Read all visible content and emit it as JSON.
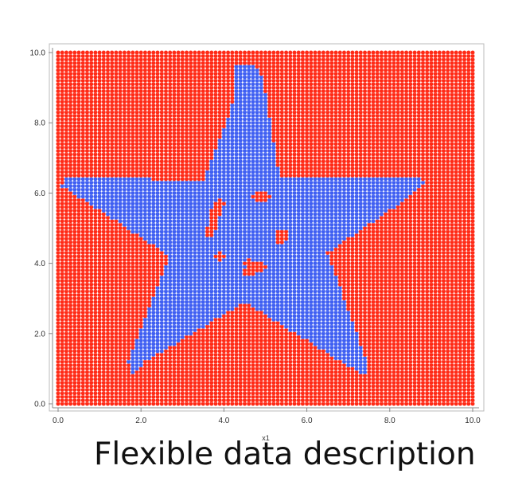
{
  "caption": "Flexible data description",
  "chart_data": {
    "type": "scatter",
    "title": "",
    "xlabel": "x1",
    "ylabel": "",
    "xlim": [
      0,
      10
    ],
    "ylim": [
      0,
      10
    ],
    "x_ticks": [
      "0.0",
      "2.0",
      "4.0",
      "6.0",
      "8.0",
      "10.0"
    ],
    "y_ticks": [
      "0.0",
      "2.0",
      "4.0",
      "6.0",
      "8.0",
      "10.0"
    ],
    "grid": false,
    "legend": "none",
    "description_of_data": "Dense regular grid of points on [0,10]x[0,10] with spacing 0.1, colored by class: points inside a five-pointed star shape are blue, points outside are red.",
    "grid_spacing": 0.1,
    "series": [
      {
        "name": "",
        "color": "#ff2a16",
        "region": "outside-star"
      },
      {
        "name": "",
        "color": "#3f5ff2",
        "region": "inside-star",
        "outline": [
          [
            4.3,
            9.7
          ],
          [
            4.75,
            9.7
          ],
          [
            4.95,
            9.2
          ],
          [
            5.35,
            6.4
          ],
          [
            8.5,
            6.5
          ],
          [
            8.95,
            6.35
          ],
          [
            8.5,
            5.9
          ],
          [
            6.5,
            4.3
          ],
          [
            7.45,
            1.2
          ],
          [
            7.4,
            0.8
          ],
          [
            6.7,
            1.3
          ],
          [
            4.5,
            2.9
          ],
          [
            2.1,
            1.2
          ],
          [
            1.8,
            0.8
          ],
          [
            1.7,
            1.2
          ],
          [
            2.7,
            4.2
          ],
          [
            0.1,
            6.2
          ],
          [
            0.2,
            6.5
          ],
          [
            1.0,
            6.5
          ],
          [
            3.5,
            6.3
          ],
          [
            4.2,
            8.5
          ]
        ]
      }
    ],
    "red_islands_inside_star": [
      [
        [
          3.75,
          5.35
        ],
        [
          3.9,
          5.75
        ],
        [
          3.65,
          4.8
        ]
      ],
      [
        [
          4.6,
          4.0
        ],
        [
          4.95,
          3.9
        ],
        [
          4.55,
          3.75
        ]
      ],
      [
        [
          5.35,
          4.9
        ],
        [
          5.45,
          4.8
        ],
        [
          5.35,
          4.6
        ]
      ],
      [
        [
          4.8,
          5.9
        ],
        [
          5.0,
          5.9
        ]
      ],
      [
        [
          3.9,
          4.2
        ],
        [
          3.95,
          4.2
        ]
      ]
    ],
    "colors": {
      "outside": "#ff2a16",
      "inside": "#3f5ff2",
      "axis": "#888888",
      "frame": "#aaaaaa"
    }
  }
}
